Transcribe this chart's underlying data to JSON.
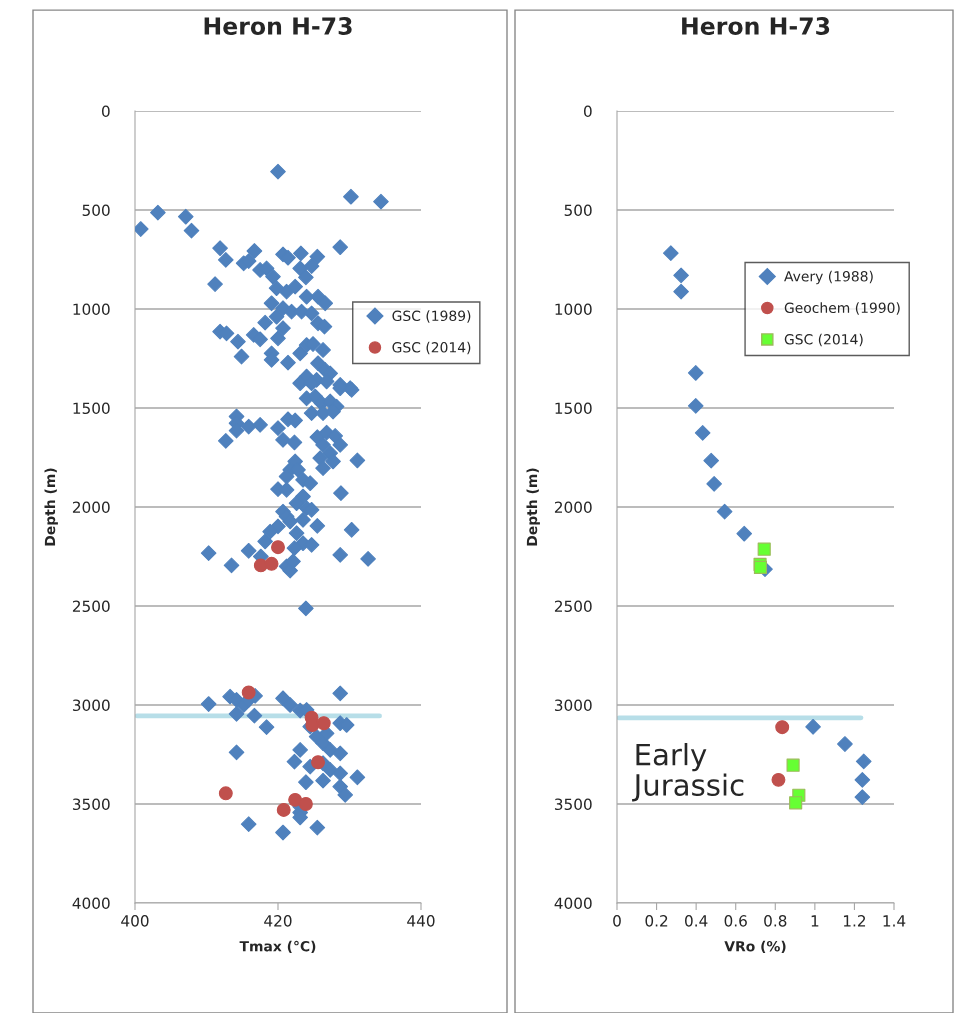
{
  "chart_data": [
    {
      "type": "scatter",
      "title": "Heron H-73",
      "xlabel": "Tmax (°C)",
      "ylabel": "Depth (m)",
      "xlim": [
        400,
        440
      ],
      "xticks": [
        400,
        420,
        440
      ],
      "ylim": [
        4000,
        0
      ],
      "yticks": [
        0,
        500,
        1000,
        1500,
        2000,
        2500,
        3000,
        3500,
        4000
      ],
      "grid": "y",
      "legend": "right",
      "series": [
        {
          "name": "GSC (1989)",
          "color": "#4f81bd",
          "marker": "diamond",
          "x": [
            420.0,
            430.2,
            434.4,
            403.2,
            407.1,
            400.8,
            407.9,
            411.9,
            416.7,
            420.7,
            423.2,
            425.5,
            428.7,
            412.7,
            415.2,
            415.9,
            421.4,
            423.1,
            424.7,
            423.9,
            417.5,
            418.4,
            419.3,
            411.2,
            419.8,
            421.2,
            422.4,
            424.0,
            425.6,
            426.6,
            419.1,
            420.7,
            421.9,
            423.3,
            424.7,
            419.8,
            418.2,
            420.7,
            425.6,
            426.5,
            411.9,
            412.8,
            414.4,
            416.6,
            417.5,
            420.0,
            414.9,
            419.1,
            419.1,
            421.4,
            423.1,
            424.0,
            424.9,
            426.3,
            425.6,
            426.6,
            427.3,
            424.0,
            425.4,
            428.7,
            430.1,
            423.1,
            424.7,
            426.8,
            428.7,
            430.3,
            424.0,
            425.2,
            426.1,
            427.3,
            428.2,
            424.7,
            426.3,
            427.7,
            414.2,
            414.2,
            414.2,
            415.9,
            417.5,
            420.0,
            421.4,
            422.4,
            412.7,
            420.7,
            422.3,
            425.5,
            426.8,
            428.0,
            428.7,
            426.3,
            427.3,
            425.9,
            426.3,
            427.7,
            431.1,
            422.4,
            421.7,
            421.2,
            422.8,
            423.5,
            424.5,
            420.0,
            421.2,
            428.8,
            423.5,
            422.6,
            424.0,
            424.7,
            420.7,
            421.2,
            421.7,
            423.5,
            420.0,
            418.9,
            422.6,
            425.5,
            430.3,
            418.2,
            423.5,
            424.7,
            422.3,
            410.3,
            415.9,
            417.6,
            428.7,
            432.6,
            413.5,
            421.2,
            421.7,
            422.1,
            423.9,
            428.7,
            410.3,
            413.3,
            414.2,
            415.2,
            415.9,
            416.8,
            414.2,
            416.7,
            420.7,
            421.7,
            423.1,
            424.0,
            424.5,
            418.4,
            425.4,
            426.3,
            426.8,
            428.7,
            429.6,
            427.3,
            428.7,
            414.2,
            423.1,
            422.3,
            424.5,
            426.3,
            427.3,
            428.7,
            431.1,
            423.9,
            426.3,
            428.7,
            429.4,
            423.1,
            423.1,
            423.1,
            415.9,
            420.7,
            425.5
          ],
          "values": [
            306,
            433,
            458,
            513,
            534,
            596,
            604,
            693,
            707,
            724,
            719,
            736,
            688,
            752,
            769,
            758,
            741,
            795,
            783,
            840,
            803,
            795,
            837,
            874,
            895,
            912,
            887,
            938,
            938,
            971,
            971,
            996,
            1013,
            1013,
            1022,
            1039,
            1069,
            1097,
            1072,
            1089,
            1114,
            1123,
            1165,
            1131,
            1153,
            1148,
            1240,
            1224,
            1257,
            1271,
            1224,
            1182,
            1177,
            1207,
            1274,
            1308,
            1325,
            1341,
            1358,
            1383,
            1400,
            1375,
            1375,
            1366,
            1400,
            1408,
            1451,
            1442,
            1476,
            1467,
            1493,
            1526,
            1526,
            1518,
            1543,
            1577,
            1614,
            1594,
            1585,
            1602,
            1557,
            1563,
            1666,
            1661,
            1674,
            1647,
            1624,
            1641,
            1686,
            1686,
            1728,
            1753,
            1804,
            1770,
            1765,
            1770,
            1812,
            1846,
            1812,
            1863,
            1880,
            1910,
            1913,
            1930,
            1947,
            1981,
            2006,
            2014,
            2023,
            2048,
            2073,
            2065,
            2098,
            2124,
            2132,
            2095,
            2115,
            2174,
            2183,
            2191,
            2208,
            2233,
            2221,
            2250,
            2242,
            2262,
            2295,
            2300,
            2321,
            2275,
            2512,
            2941,
            2995,
            2958,
            2974,
            3000,
            2974,
            2954,
            3045,
            3054,
            2966,
            3000,
            3028,
            3025,
            3109,
            3112,
            3160,
            3193,
            3143,
            3092,
            3101,
            3227,
            3244,
            3239,
            3227,
            3286,
            3311,
            3294,
            3328,
            3345,
            3365,
            3390,
            3382,
            3412,
            3454,
            3513,
            3543,
            3568,
            3602,
            3644,
            3619
          ]
        },
        {
          "name": "GSC (2014)",
          "color": "#c0504d",
          "marker": "circle",
          "x": [
            420.0,
            417.6,
            419.1,
            415.9,
            424.7,
            424.8,
            426.4,
            425.6,
            412.7,
            422.4,
            423.9,
            420.8
          ],
          "values": [
            2203,
            2295,
            2287,
            2937,
            3064,
            3101,
            3092,
            3289,
            3446,
            3479,
            3500,
            3530
          ]
        },
        {
          "type": "line",
          "color": "#b7dee8",
          "marker": "none",
          "x": [
            400.3,
            434.2
          ],
          "values": [
            3055,
            3055
          ]
        }
      ]
    },
    {
      "type": "scatter",
      "title": "Heron H-73",
      "xlabel": "VRo (%)",
      "ylabel": "Depth (m)",
      "xlim": [
        0,
        1.4
      ],
      "xticks": [
        0,
        0.2,
        0.4,
        0.6,
        0.8,
        1,
        1.2,
        1.4
      ],
      "ylim": [
        4000,
        0
      ],
      "yticks": [
        0,
        500,
        1000,
        1500,
        2000,
        2500,
        3000,
        3500,
        4000
      ],
      "grid": "y",
      "legend": "right",
      "annotations": [
        "Early\nJurassic"
      ],
      "series": [
        {
          "name": "Avery (1988)",
          "color": "#4f81bd",
          "marker": "diamond",
          "x": [
            0.272,
            0.324,
            0.324,
            0.398,
            0.398,
            0.433,
            0.476,
            0.491,
            0.544,
            0.643,
            0.748,
            0.991,
            1.152,
            1.247,
            1.24,
            1.24
          ],
          "values": [
            718,
            830,
            912,
            1323,
            1489,
            1626,
            1766,
            1883,
            2023,
            2135,
            2314,
            3110,
            3197,
            3285,
            3378,
            3465
          ]
        },
        {
          "name": "Geochem (1990)",
          "color": "#c0504d",
          "marker": "circle",
          "x": [
            0.835,
            0.816
          ],
          "values": [
            3112,
            3378
          ]
        },
        {
          "name": "GSC (2014)",
          "color": "#66ff33",
          "marker": "square",
          "x": [
            0.744,
            0.723,
            0.725,
            0.89,
            0.919,
            0.903
          ],
          "values": [
            2213,
            2290,
            2305,
            3304,
            3456,
            3494
          ]
        },
        {
          "type": "line",
          "color": "#b7dee8",
          "marker": "none",
          "x": [
            0.01,
            1.233
          ],
          "values": [
            3065,
            3065
          ]
        }
      ]
    }
  ]
}
